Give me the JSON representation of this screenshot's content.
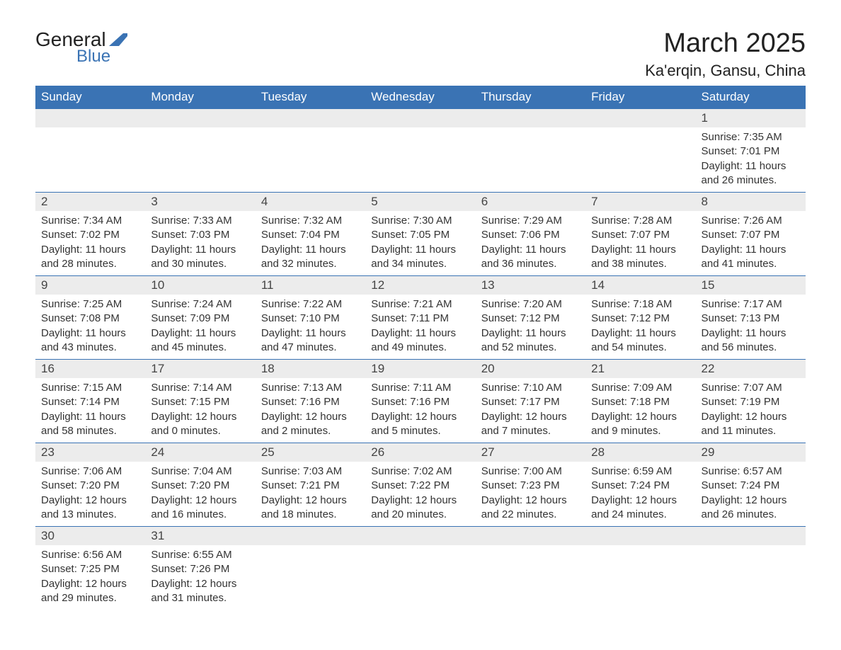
{
  "logo": {
    "text_general": "General",
    "text_blue": "Blue",
    "flag_color": "#3a73b4"
  },
  "title": "March 2025",
  "location": "Ka'erqin, Gansu, China",
  "colors": {
    "header_bg": "#3a73b4",
    "header_text": "#ffffff",
    "daynum_bg": "#ececec",
    "daynum_text": "#444444",
    "body_text": "#333333",
    "row_border": "#3a73b4"
  },
  "weekdays": [
    "Sunday",
    "Monday",
    "Tuesday",
    "Wednesday",
    "Thursday",
    "Friday",
    "Saturday"
  ],
  "weeks": [
    {
      "nums": [
        "",
        "",
        "",
        "",
        "",
        "",
        "1"
      ],
      "data": [
        "",
        "",
        "",
        "",
        "",
        "",
        "Sunrise: 7:35 AM\nSunset: 7:01 PM\nDaylight: 11 hours and 26 minutes."
      ]
    },
    {
      "nums": [
        "2",
        "3",
        "4",
        "5",
        "6",
        "7",
        "8"
      ],
      "data": [
        "Sunrise: 7:34 AM\nSunset: 7:02 PM\nDaylight: 11 hours and 28 minutes.",
        "Sunrise: 7:33 AM\nSunset: 7:03 PM\nDaylight: 11 hours and 30 minutes.",
        "Sunrise: 7:32 AM\nSunset: 7:04 PM\nDaylight: 11 hours and 32 minutes.",
        "Sunrise: 7:30 AM\nSunset: 7:05 PM\nDaylight: 11 hours and 34 minutes.",
        "Sunrise: 7:29 AM\nSunset: 7:06 PM\nDaylight: 11 hours and 36 minutes.",
        "Sunrise: 7:28 AM\nSunset: 7:07 PM\nDaylight: 11 hours and 38 minutes.",
        "Sunrise: 7:26 AM\nSunset: 7:07 PM\nDaylight: 11 hours and 41 minutes."
      ]
    },
    {
      "nums": [
        "9",
        "10",
        "11",
        "12",
        "13",
        "14",
        "15"
      ],
      "data": [
        "Sunrise: 7:25 AM\nSunset: 7:08 PM\nDaylight: 11 hours and 43 minutes.",
        "Sunrise: 7:24 AM\nSunset: 7:09 PM\nDaylight: 11 hours and 45 minutes.",
        "Sunrise: 7:22 AM\nSunset: 7:10 PM\nDaylight: 11 hours and 47 minutes.",
        "Sunrise: 7:21 AM\nSunset: 7:11 PM\nDaylight: 11 hours and 49 minutes.",
        "Sunrise: 7:20 AM\nSunset: 7:12 PM\nDaylight: 11 hours and 52 minutes.",
        "Sunrise: 7:18 AM\nSunset: 7:12 PM\nDaylight: 11 hours and 54 minutes.",
        "Sunrise: 7:17 AM\nSunset: 7:13 PM\nDaylight: 11 hours and 56 minutes."
      ]
    },
    {
      "nums": [
        "16",
        "17",
        "18",
        "19",
        "20",
        "21",
        "22"
      ],
      "data": [
        "Sunrise: 7:15 AM\nSunset: 7:14 PM\nDaylight: 11 hours and 58 minutes.",
        "Sunrise: 7:14 AM\nSunset: 7:15 PM\nDaylight: 12 hours and 0 minutes.",
        "Sunrise: 7:13 AM\nSunset: 7:16 PM\nDaylight: 12 hours and 2 minutes.",
        "Sunrise: 7:11 AM\nSunset: 7:16 PM\nDaylight: 12 hours and 5 minutes.",
        "Sunrise: 7:10 AM\nSunset: 7:17 PM\nDaylight: 12 hours and 7 minutes.",
        "Sunrise: 7:09 AM\nSunset: 7:18 PM\nDaylight: 12 hours and 9 minutes.",
        "Sunrise: 7:07 AM\nSunset: 7:19 PM\nDaylight: 12 hours and 11 minutes."
      ]
    },
    {
      "nums": [
        "23",
        "24",
        "25",
        "26",
        "27",
        "28",
        "29"
      ],
      "data": [
        "Sunrise: 7:06 AM\nSunset: 7:20 PM\nDaylight: 12 hours and 13 minutes.",
        "Sunrise: 7:04 AM\nSunset: 7:20 PM\nDaylight: 12 hours and 16 minutes.",
        "Sunrise: 7:03 AM\nSunset: 7:21 PM\nDaylight: 12 hours and 18 minutes.",
        "Sunrise: 7:02 AM\nSunset: 7:22 PM\nDaylight: 12 hours and 20 minutes.",
        "Sunrise: 7:00 AM\nSunset: 7:23 PM\nDaylight: 12 hours and 22 minutes.",
        "Sunrise: 6:59 AM\nSunset: 7:24 PM\nDaylight: 12 hours and 24 minutes.",
        "Sunrise: 6:57 AM\nSunset: 7:24 PM\nDaylight: 12 hours and 26 minutes."
      ]
    },
    {
      "nums": [
        "30",
        "31",
        "",
        "",
        "",
        "",
        ""
      ],
      "data": [
        "Sunrise: 6:56 AM\nSunset: 7:25 PM\nDaylight: 12 hours and 29 minutes.",
        "Sunrise: 6:55 AM\nSunset: 7:26 PM\nDaylight: 12 hours and 31 minutes.",
        "",
        "",
        "",
        "",
        ""
      ]
    }
  ]
}
